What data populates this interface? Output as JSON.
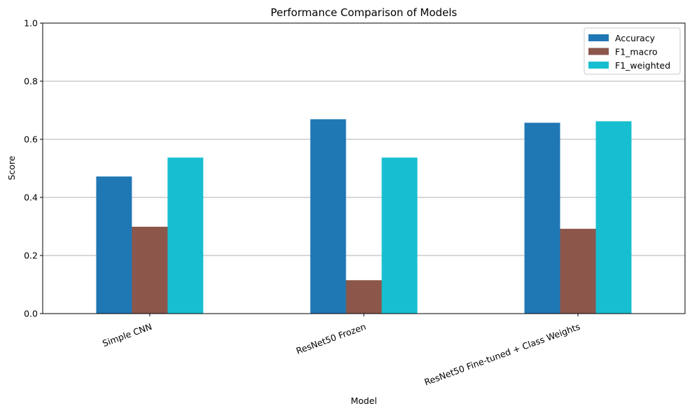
{
  "chart_data": {
    "type": "bar",
    "title": "Performance Comparison of Models",
    "xlabel": "Model",
    "ylabel": "Score",
    "ylim": [
      0,
      1.0
    ],
    "yticks": [
      "0.0",
      "0.2",
      "0.4",
      "0.6",
      "0.8",
      "1.0"
    ],
    "grid": "y-axis gridlines on",
    "legend_position": "top-right",
    "categories": [
      "Simple CNN",
      "ResNet50 Frozen",
      "ResNet50 Fine-tuned + Class Weights"
    ],
    "series": [
      {
        "name": "Accuracy",
        "color": "#1f77b4",
        "values": [
          0.472,
          0.669,
          0.657
        ]
      },
      {
        "name": "F1_macro",
        "color": "#8c564b",
        "values": [
          0.299,
          0.115,
          0.292
        ]
      },
      {
        "name": "F1_weighted",
        "color": "#17becf",
        "values": [
          0.537,
          0.537,
          0.662
        ]
      }
    ]
  }
}
